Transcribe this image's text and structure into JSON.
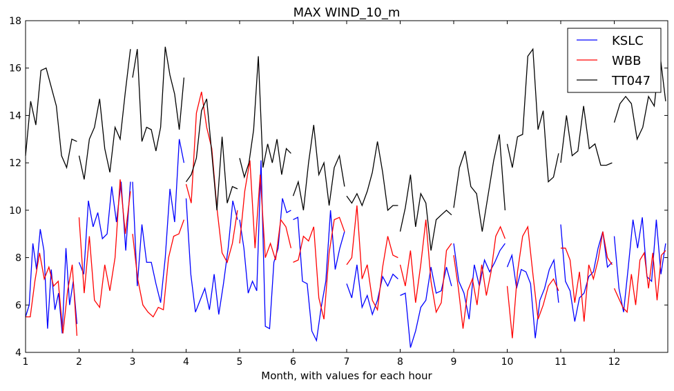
{
  "chart_data": {
    "type": "line",
    "title": "MAX WIND_10_m",
    "xlabel": "Month, with values for each hour",
    "ylabel": "",
    "xlim": [
      1,
      13
    ],
    "ylim": [
      4,
      18
    ],
    "xticks": [
      "1",
      "2",
      "3",
      "4",
      "5",
      "6",
      "7",
      "8",
      "9",
      "10",
      "11",
      "12"
    ],
    "yticks": [
      "4",
      "6",
      "8",
      "10",
      "12",
      "14",
      "16",
      "18"
    ],
    "grid": false,
    "legend_position": "top-right",
    "series": [
      {
        "name": "KSLC",
        "color": "#0000ff",
        "segments": [
          {
            "month": 1,
            "values": [
              5.5,
              6.0,
              8.6,
              7.5,
              9.2,
              8.3,
              5.0,
              7.5,
              5.8,
              6.5,
              4.8,
              8.4,
              6.0,
              7.0,
              5.2
            ]
          },
          {
            "month": 2,
            "values": [
              7.8,
              7.3,
              10.4,
              9.3,
              9.9,
              8.8,
              9.0,
              11.0,
              9.5,
              11.2,
              8.3,
              11.2
            ]
          },
          {
            "month": 3,
            "values": [
              11.2,
              6.8,
              9.4,
              7.8,
              7.8,
              6.9,
              6.1,
              8.0,
              10.9,
              9.5,
              13.0,
              12.0
            ]
          },
          {
            "month": 4,
            "values": [
              10.5,
              7.3,
              5.7,
              6.2,
              6.7,
              5.8,
              7.3,
              5.6,
              6.9,
              8.4,
              10.4,
              9.6
            ]
          },
          {
            "month": 5,
            "values": [
              9.6,
              8.4,
              6.5,
              7.0,
              6.6,
              12.1,
              5.1,
              5.0,
              7.8,
              8.4,
              10.5,
              9.9,
              10.0
            ]
          },
          {
            "month": 6,
            "values": [
              9.6,
              9.7,
              7.0,
              6.9,
              4.9,
              4.5,
              5.9,
              7.0,
              10.0,
              7.5,
              8.4,
              9.1
            ]
          },
          {
            "month": 7,
            "values": [
              6.9,
              6.3,
              7.7,
              5.9,
              6.4,
              5.6,
              6.2,
              7.2,
              6.8,
              7.3,
              7.1
            ]
          },
          {
            "month": 8,
            "values": [
              6.4,
              6.5,
              4.2,
              4.9,
              5.9,
              6.2,
              7.6,
              6.5,
              6.6,
              7.6,
              6.8
            ]
          },
          {
            "month": 9,
            "values": [
              8.6,
              7.0,
              6.5,
              5.4,
              7.7,
              6.8,
              7.9,
              7.4,
              7.8,
              8.3,
              8.6
            ]
          },
          {
            "month": 10,
            "values": [
              7.6,
              8.1,
              6.7,
              7.5,
              7.4,
              6.9,
              4.6,
              6.2,
              6.7,
              7.5,
              7.9,
              6.1
            ]
          },
          {
            "month": 11,
            "values": [
              9.4,
              7.0,
              6.6,
              5.3,
              6.3,
              6.5,
              7.2,
              7.4,
              8.4,
              9.1,
              7.6,
              7.8
            ]
          },
          {
            "month": 12,
            "values": [
              8.9,
              6.7,
              5.7,
              7.6,
              9.6,
              8.4,
              9.7,
              7.2,
              7.0,
              9.6,
              7.3,
              8.6
            ]
          }
        ]
      },
      {
        "name": "WBB",
        "color": "#ff0000",
        "segments": [
          {
            "month": 1,
            "values": [
              5.5,
              5.5,
              7.0,
              8.2,
              7.1,
              7.6,
              6.8,
              7.0,
              4.8,
              6.6,
              7.7,
              4.7
            ]
          },
          {
            "month": 2,
            "values": [
              9.7,
              6.5,
              8.9,
              6.2,
              5.9,
              7.7,
              6.6,
              8.0,
              11.3,
              9.0,
              10.8
            ]
          },
          {
            "month": 3,
            "values": [
              9.0,
              7.1,
              6.0,
              5.7,
              5.5,
              5.9,
              5.8,
              8.0,
              8.9,
              9.0,
              9.6
            ]
          },
          {
            "month": 4,
            "values": [
              11.1,
              10.3,
              14.1,
              15.0,
              13.5,
              12.6,
              10.1,
              8.2,
              7.8,
              8.6,
              10.0
            ]
          },
          {
            "month": 5,
            "values": [
              8.6,
              10.8,
              12.1,
              8.4,
              11.5,
              8.0,
              8.6,
              7.9,
              9.6,
              9.3,
              8.4
            ]
          },
          {
            "month": 6,
            "values": [
              7.8,
              7.9,
              8.9,
              8.7,
              9.3,
              6.3,
              5.4,
              8.2,
              9.6,
              9.7,
              9.1
            ]
          },
          {
            "month": 7,
            "values": [
              7.7,
              8.0,
              10.2,
              7.1,
              7.7,
              6.2,
              5.8,
              7.6,
              8.9,
              8.1,
              8.0
            ]
          },
          {
            "month": 8,
            "values": [
              7.7,
              6.8,
              8.3,
              6.1,
              7.7,
              9.6,
              7.0,
              5.7,
              6.1,
              8.3,
              8.6
            ]
          },
          {
            "month": 9,
            "values": [
              8.1,
              6.7,
              5.0,
              6.6,
              7.1,
              6.0,
              7.7,
              6.4,
              7.4,
              8.9,
              9.3,
              8.8
            ]
          },
          {
            "month": 10,
            "values": [
              6.8,
              4.6,
              7.4,
              8.9,
              9.3,
              7.3,
              5.4,
              6.0,
              6.8,
              7.1,
              6.6
            ]
          },
          {
            "month": 11,
            "values": [
              8.4,
              8.4,
              7.9,
              6.1,
              7.4,
              5.3,
              7.7,
              7.1,
              7.9,
              9.1,
              8.0,
              7.7
            ]
          },
          {
            "month": 12,
            "values": [
              6.7,
              6.3,
              5.9,
              5.7,
              7.3,
              6.0,
              7.9,
              8.2,
              6.7,
              8.2,
              6.2,
              8.1,
              8.3
            ]
          }
        ]
      },
      {
        "name": "TT047",
        "color": "#000000",
        "segments": [
          {
            "month": 1,
            "values": [
              12.3,
              14.6,
              13.6,
              15.9,
              16.0,
              15.2,
              14.4,
              12.3,
              11.8,
              13.0,
              12.9
            ]
          },
          {
            "month": 2,
            "values": [
              12.3,
              11.3,
              13.0,
              13.5,
              14.7,
              12.6,
              11.6,
              13.5,
              13.0,
              15.0,
              16.8
            ]
          },
          {
            "month": 3,
            "values": [
              15.6,
              16.8,
              12.9,
              13.5,
              13.4,
              12.5,
              13.5,
              16.9,
              15.7,
              14.9,
              13.4,
              15.6
            ]
          },
          {
            "month": 4,
            "values": [
              11.2,
              11.5,
              12.2,
              14.2,
              14.7,
              12.4,
              10.0,
              13.1,
              10.3,
              11.0,
              10.9
            ]
          },
          {
            "month": 5,
            "values": [
              12.2,
              11.4,
              12.0,
              13.4,
              16.5,
              11.8,
              12.8,
              12.0,
              13.0,
              11.5,
              12.6,
              12.4
            ]
          },
          {
            "month": 6,
            "values": [
              10.6,
              11.2,
              10.0,
              12.0,
              13.6,
              11.5,
              12.0,
              10.2,
              11.8,
              12.3,
              11.0
            ]
          },
          {
            "month": 7,
            "values": [
              10.6,
              10.3,
              10.7,
              10.2,
              10.8,
              11.6,
              12.9,
              11.6,
              10.0,
              10.2,
              10.2
            ]
          },
          {
            "month": 8,
            "values": [
              9.1,
              10.1,
              11.5,
              9.3,
              10.7,
              10.3,
              8.3,
              9.6,
              9.8,
              10.0,
              9.8
            ]
          },
          {
            "month": 9,
            "values": [
              10.1,
              11.8,
              12.5,
              11.0,
              10.7,
              9.1,
              10.6,
              12.1,
              13.2,
              10.0
            ]
          },
          {
            "month": 10,
            "values": [
              12.8,
              11.8,
              13.1,
              13.2,
              16.5,
              16.8,
              13.4,
              14.2,
              11.2,
              11.4,
              12.4
            ]
          },
          {
            "month": 11,
            "values": [
              12.0,
              14.0,
              12.3,
              12.5,
              14.4,
              12.6,
              12.8,
              11.9,
              11.9,
              12.0
            ]
          },
          {
            "month": 12,
            "values": [
              13.7,
              14.5,
              14.8,
              14.5,
              13.0,
              13.5,
              14.8,
              14.4,
              16.6,
              14.6
            ]
          }
        ]
      }
    ]
  }
}
